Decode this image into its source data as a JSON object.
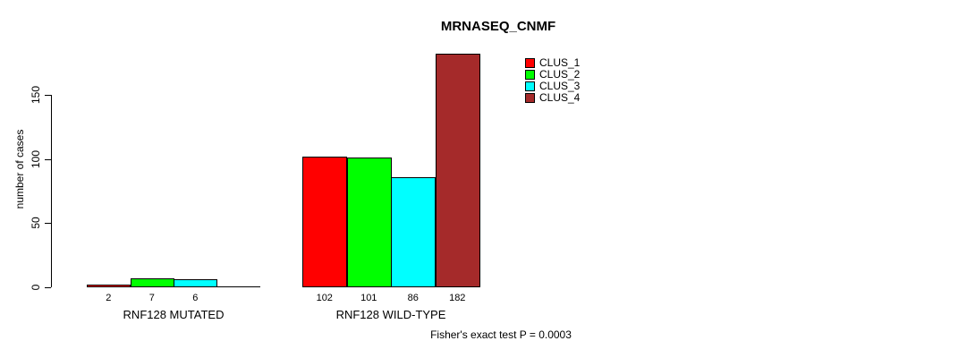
{
  "chart_data": {
    "type": "bar",
    "title": "MRNASEQ_CNMF",
    "xlabel": "",
    "ylabel": "number of cases",
    "annotation": "Fisher's exact test P = 0.0003",
    "categories": [
      "RNF128 MUTATED",
      "RNF128 WILD-TYPE"
    ],
    "series": [
      {
        "name": "CLUS_1",
        "color": "#FF0000",
        "values": [
          2,
          102
        ]
      },
      {
        "name": "CLUS_2",
        "color": "#00FF00",
        "values": [
          7,
          101
        ]
      },
      {
        "name": "CLUS_3",
        "color": "#00FFFF",
        "values": [
          6,
          86
        ]
      },
      {
        "name": "CLUS_4",
        "color": "#A52A2A",
        "values": [
          0,
          182
        ]
      }
    ],
    "bar_labels_shown": [
      [
        "2",
        "7",
        "6",
        ""
      ],
      [
        "102",
        "101",
        "86",
        "182"
      ]
    ],
    "yticks": [
      0,
      50,
      100,
      150
    ],
    "ytick_labels": [
      "0",
      "50",
      "100",
      "150"
    ],
    "ylim": [
      0,
      184
    ],
    "grid": false,
    "legend_position": "top-right-inner",
    "background_color": "#ffffff",
    "axis_color": "#000000"
  }
}
